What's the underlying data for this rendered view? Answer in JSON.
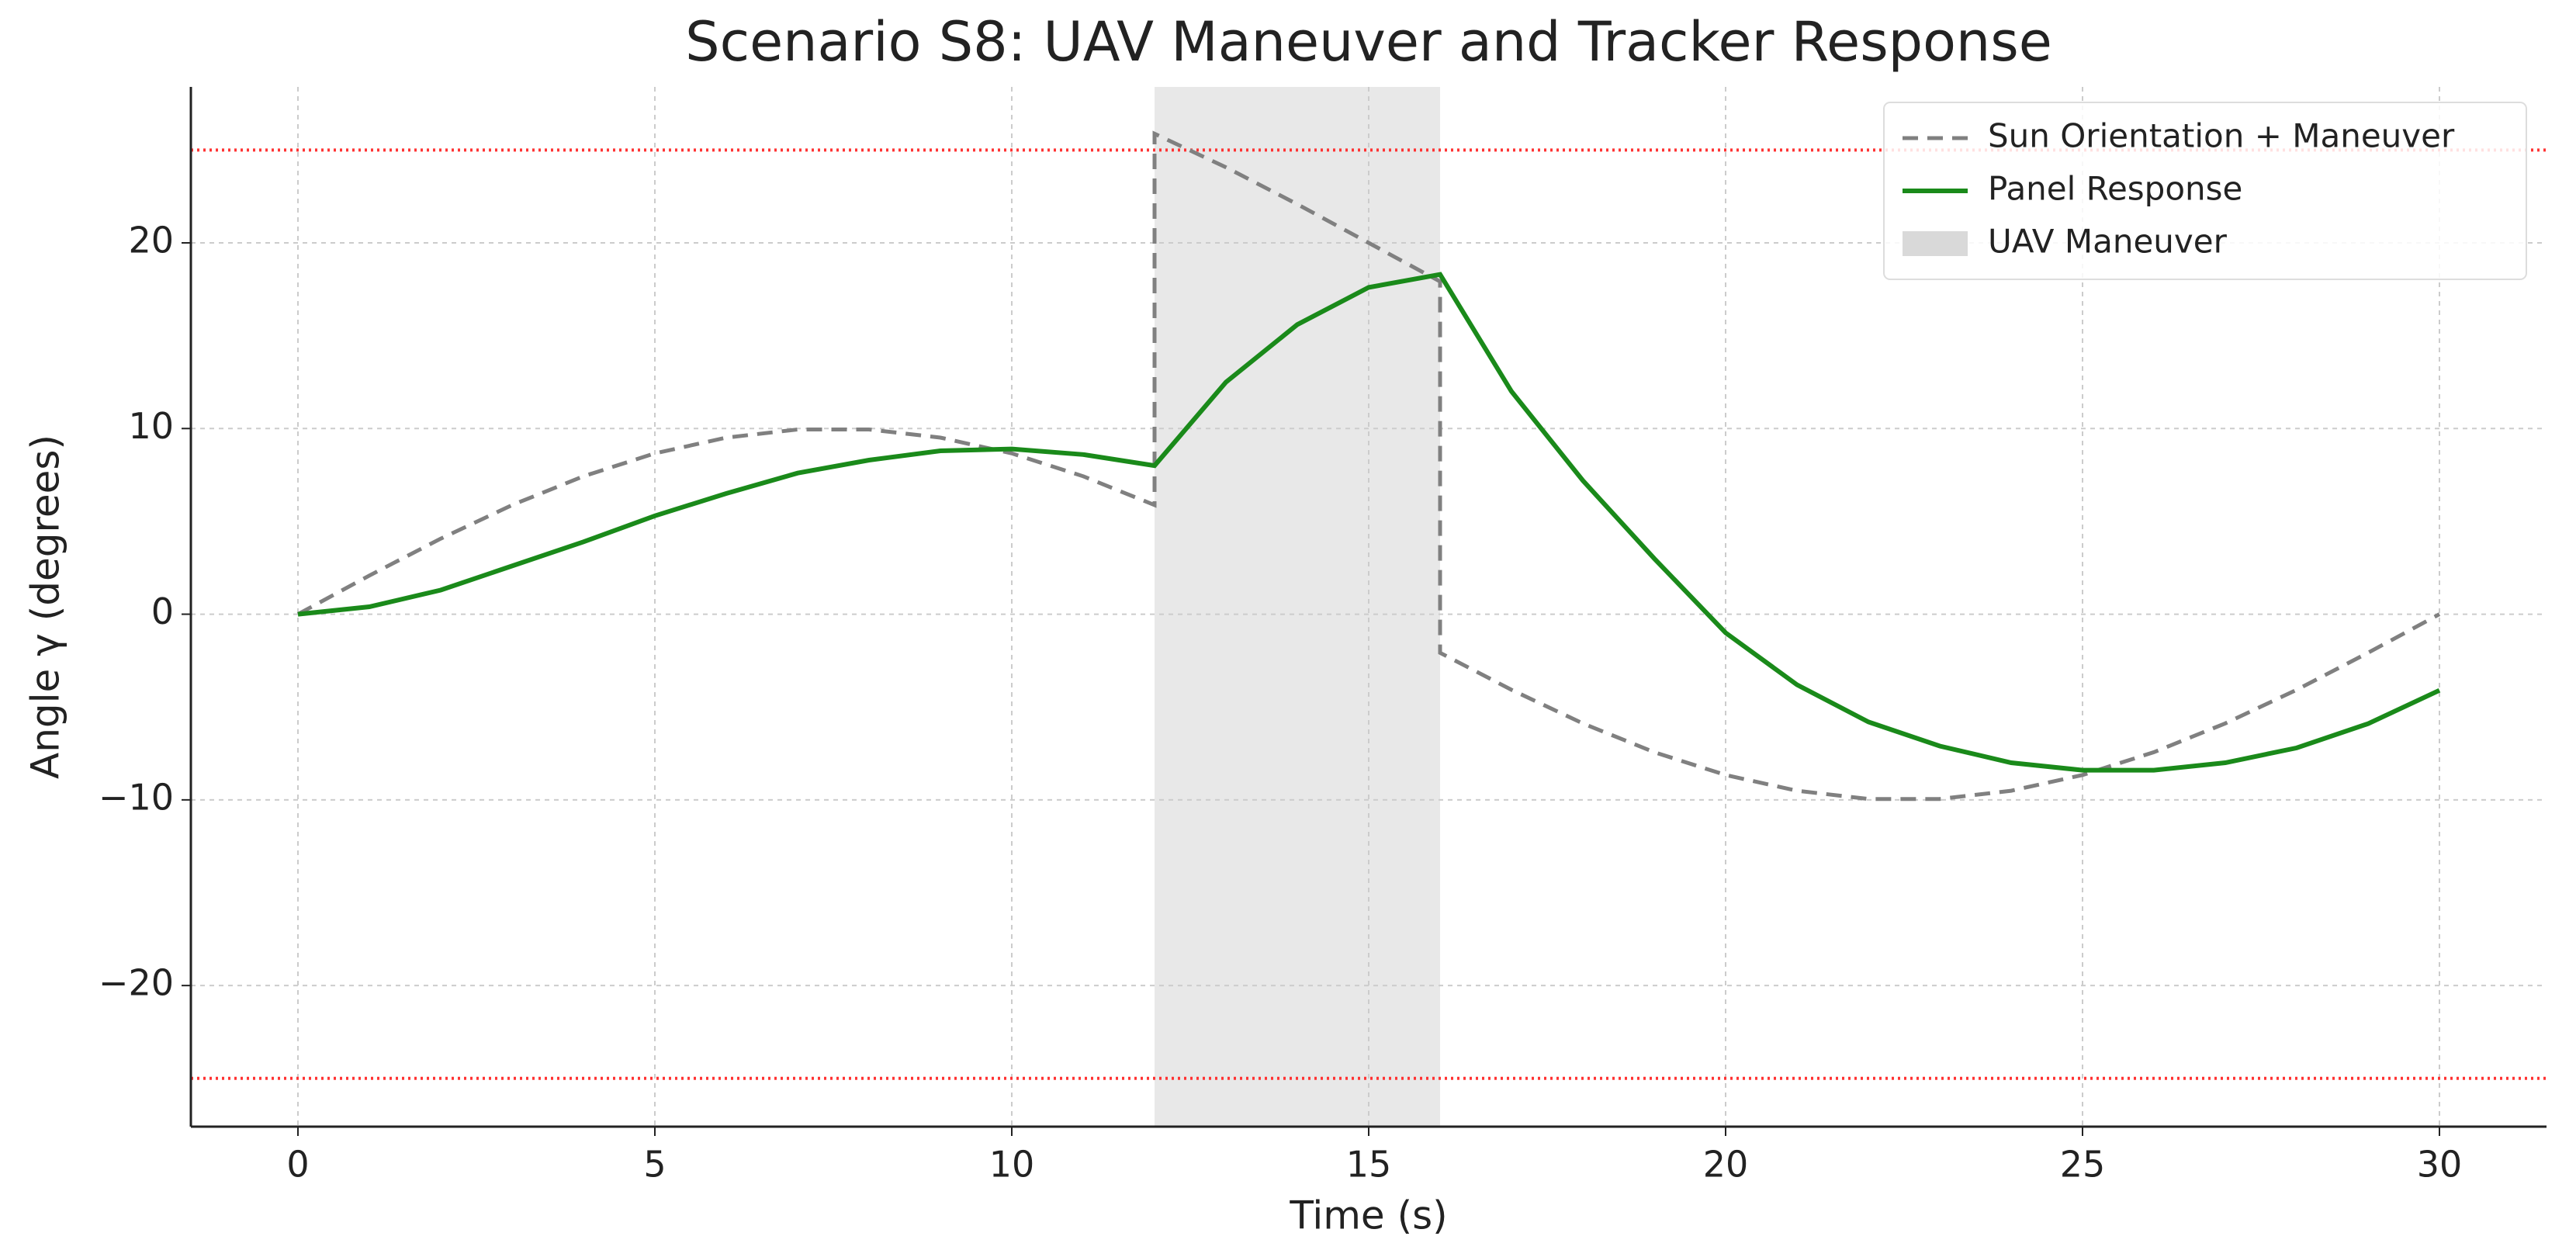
{
  "chart_data": {
    "type": "line",
    "title": "Scenario S8: UAV Maneuver and Tracker Response",
    "x_label": "Time (s)",
    "y_label": "Angle γ (degrees)",
    "x": [
      0,
      1,
      2,
      3,
      4,
      5,
      6,
      7,
      8,
      9,
      10,
      11,
      12,
      12,
      13,
      14,
      15,
      16,
      16,
      17,
      18,
      19,
      20,
      21,
      22,
      23,
      24,
      25,
      26,
      27,
      28,
      29,
      30
    ],
    "series": [
      {
        "name": "Sun Orientation + Maneuver",
        "color": "#808080",
        "dash": true,
        "values": [
          0,
          2.08,
          4.07,
          5.88,
          7.43,
          8.66,
          9.51,
          9.95,
          9.95,
          9.51,
          8.66,
          7.43,
          5.88,
          25.88,
          24.07,
          22.08,
          20,
          17.92,
          -2.08,
          -4.07,
          -5.88,
          -7.43,
          -8.66,
          -9.51,
          -9.95,
          -9.95,
          -9.51,
          -8.66,
          -7.43,
          -5.88,
          -4.07,
          -2.08,
          0
        ]
      },
      {
        "name": "Panel Response",
        "color": "#1a8a1a",
        "dash": false,
        "values": [
          0,
          0.4,
          1.3,
          2.6,
          3.9,
          5.3,
          6.5,
          7.6,
          8.3,
          8.8,
          8.9,
          8.6,
          8.0,
          8.0,
          12.5,
          15.6,
          17.6,
          18.3,
          18.3,
          12,
          7.2,
          3,
          -1,
          -3.8,
          -5.8,
          -7.1,
          -8.0,
          -8.4,
          -8.4,
          -8.0,
          -7.2,
          -5.9,
          -4.1
        ]
      }
    ],
    "spans": [
      {
        "name": "UAV Maneuver",
        "start": 12,
        "end": 16,
        "color": "#d9d9d9"
      }
    ],
    "hlines": [
      {
        "value": 25,
        "color": "#ff3333"
      },
      {
        "value": -25,
        "color": "#ff3333"
      }
    ],
    "xlim": [
      -1.5,
      31.5
    ],
    "ylim": [
      -27.6,
      28.4
    ],
    "xticks": [
      0,
      5,
      10,
      15,
      20,
      25,
      30
    ],
    "yticks": [
      {
        "value": -20,
        "label": "−20"
      },
      {
        "value": -10,
        "label": "−10"
      },
      0,
      10,
      20
    ],
    "grid": true,
    "legend": "upper right"
  }
}
